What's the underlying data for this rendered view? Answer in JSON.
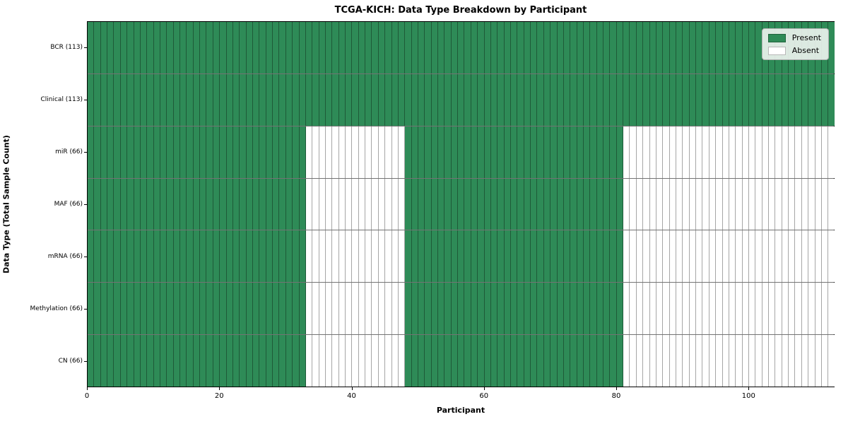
{
  "chart": {
    "title": "TCGA-KICH: Data Type Breakdown by Participant",
    "xlabel": "Participant",
    "ylabel": "Data Type (Total Sample Count)"
  },
  "chart_data": {
    "type": "heatmap",
    "title": "TCGA-KICH: Data Type Breakdown by Participant",
    "xlabel": "Participant",
    "ylabel": "Data Type (Total Sample Count)",
    "participants_total": 113,
    "x_range": [
      0,
      113
    ],
    "x_ticks": [
      0,
      20,
      40,
      60,
      80,
      100
    ],
    "grid": false,
    "legend_position": "upper right",
    "legend": [
      {
        "label": "Present",
        "color": "#2e8b57"
      },
      {
        "label": "Absent",
        "color": "#ffffff"
      }
    ],
    "colors": {
      "present": "#2e8b57",
      "absent": "#ffffff"
    },
    "rows": [
      {
        "label": "BCR (113)",
        "data_type": "BCR",
        "sample_count": 113,
        "present_ranges": [
          [
            0,
            113
          ]
        ]
      },
      {
        "label": "Clinical (113)",
        "data_type": "Clinical",
        "sample_count": 113,
        "present_ranges": [
          [
            0,
            113
          ]
        ]
      },
      {
        "label": "miR (66)",
        "data_type": "miR",
        "sample_count": 66,
        "present_ranges": [
          [
            0,
            33
          ],
          [
            48,
            81
          ]
        ]
      },
      {
        "label": "MAF (66)",
        "data_type": "MAF",
        "sample_count": 66,
        "present_ranges": [
          [
            0,
            33
          ],
          [
            48,
            81
          ]
        ]
      },
      {
        "label": "mRNA (66)",
        "data_type": "mRNA",
        "sample_count": 66,
        "present_ranges": [
          [
            0,
            33
          ],
          [
            48,
            81
          ]
        ]
      },
      {
        "label": "Methylation (66)",
        "data_type": "Methylation",
        "sample_count": 66,
        "present_ranges": [
          [
            0,
            33
          ],
          [
            48,
            81
          ]
        ]
      },
      {
        "label": "CN (66)",
        "data_type": "CN",
        "sample_count": 66,
        "present_ranges": [
          [
            0,
            33
          ],
          [
            48,
            81
          ]
        ]
      }
    ]
  }
}
